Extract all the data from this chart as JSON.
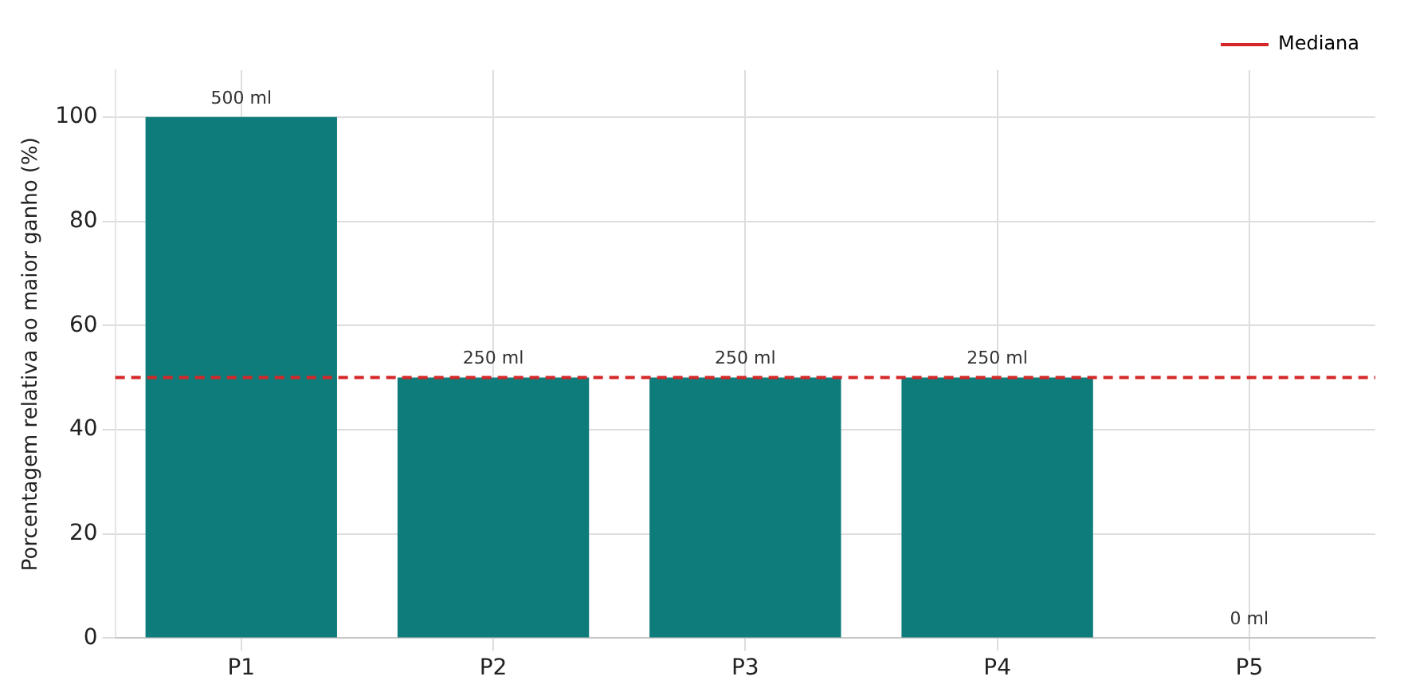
{
  "chart_data": {
    "type": "bar",
    "ylabel": "Porcentagem relativa ao maior ganho (%)",
    "categories": [
      "P1",
      "P2",
      "P3",
      "P4",
      "P5"
    ],
    "values": [
      100,
      50,
      50,
      50,
      0
    ],
    "annotations": [
      {
        "text": "500 ml",
        "x": "P1",
        "y": 100
      },
      {
        "text": "250 ml",
        "x": "P2",
        "y": 50
      },
      {
        "text": "250 ml",
        "x": "P3",
        "y": 50
      },
      {
        "text": "250 ml",
        "x": "P4",
        "y": 50
      },
      {
        "text": "0 ml",
        "x": "P5",
        "y": 0
      }
    ],
    "color": "#0e7c7b",
    "ylim": [
      0,
      109
    ],
    "yticks": [
      0,
      20,
      40,
      60,
      80,
      100
    ],
    "grid": true,
    "legend": "top right",
    "ref_lines": [
      {
        "axis": "y",
        "value": 50,
        "label": "Mediana",
        "color": "#d62728",
        "line_style": "dashed"
      }
    ]
  }
}
